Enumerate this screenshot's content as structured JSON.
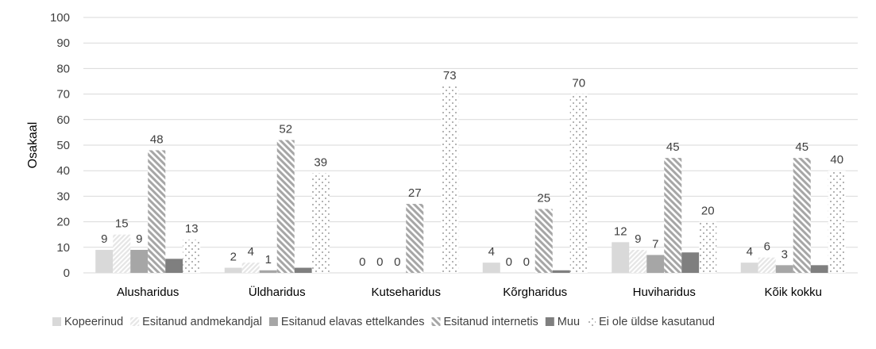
{
  "chart_data": {
    "type": "bar",
    "ylabel": "Osakaal",
    "xlabel": "",
    "title": "",
    "ylim": [
      0,
      100
    ],
    "yticks": [
      0,
      10,
      20,
      30,
      40,
      50,
      60,
      70,
      80,
      90,
      100
    ],
    "grid": true,
    "legend_position": "bottom",
    "categories": [
      "Alusharidus",
      "Üldharidus",
      "Kutseharidus",
      "Kõrgharidus",
      "Huviharidus",
      "Kõik kokku"
    ],
    "series": [
      {
        "name": "Kopeerinud",
        "values": [
          9,
          2,
          0,
          4,
          12,
          4
        ],
        "labels": [
          "9",
          "2",
          "0",
          "4",
          "12",
          "4"
        ],
        "color": "#d9d9d9",
        "pattern": "solid-light"
      },
      {
        "name": "Esitanud andmekandjal",
        "values": [
          15,
          4,
          0,
          0,
          9,
          6
        ],
        "labels": [
          "15",
          "4",
          "0",
          "0",
          "9",
          "6"
        ],
        "color": "#bfbfbf",
        "pattern": "light-diagonal-up"
      },
      {
        "name": "Esitanud elavas ettelkandes",
        "values": [
          9,
          1,
          0,
          0,
          7,
          3
        ],
        "labels": [
          "9",
          "1",
          "0",
          "0",
          "7",
          "3"
        ],
        "color": "#a6a6a6",
        "pattern": "solid-medium"
      },
      {
        "name": "Esitanud internetis",
        "values": [
          48,
          52,
          27,
          25,
          45,
          45
        ],
        "labels": [
          "48",
          "52",
          "27",
          "25",
          "45",
          "45"
        ],
        "color": "#a6a6a6",
        "pattern": "wide-diagonal-down"
      },
      {
        "name": "Muu",
        "values": [
          5.5,
          2,
          0,
          1,
          8,
          3
        ],
        "labels": [
          "",
          "",
          "",
          "",
          "",
          ""
        ],
        "color": "#7f7f7f",
        "pattern": "solid-dark"
      },
      {
        "name": "Ei ole üldse kasutanud",
        "values": [
          13,
          39,
          73,
          70,
          20,
          40
        ],
        "labels": [
          "13",
          "39",
          "73",
          "70",
          "20",
          "40"
        ],
        "color": "#7f7f7f",
        "pattern": "dots"
      }
    ]
  }
}
